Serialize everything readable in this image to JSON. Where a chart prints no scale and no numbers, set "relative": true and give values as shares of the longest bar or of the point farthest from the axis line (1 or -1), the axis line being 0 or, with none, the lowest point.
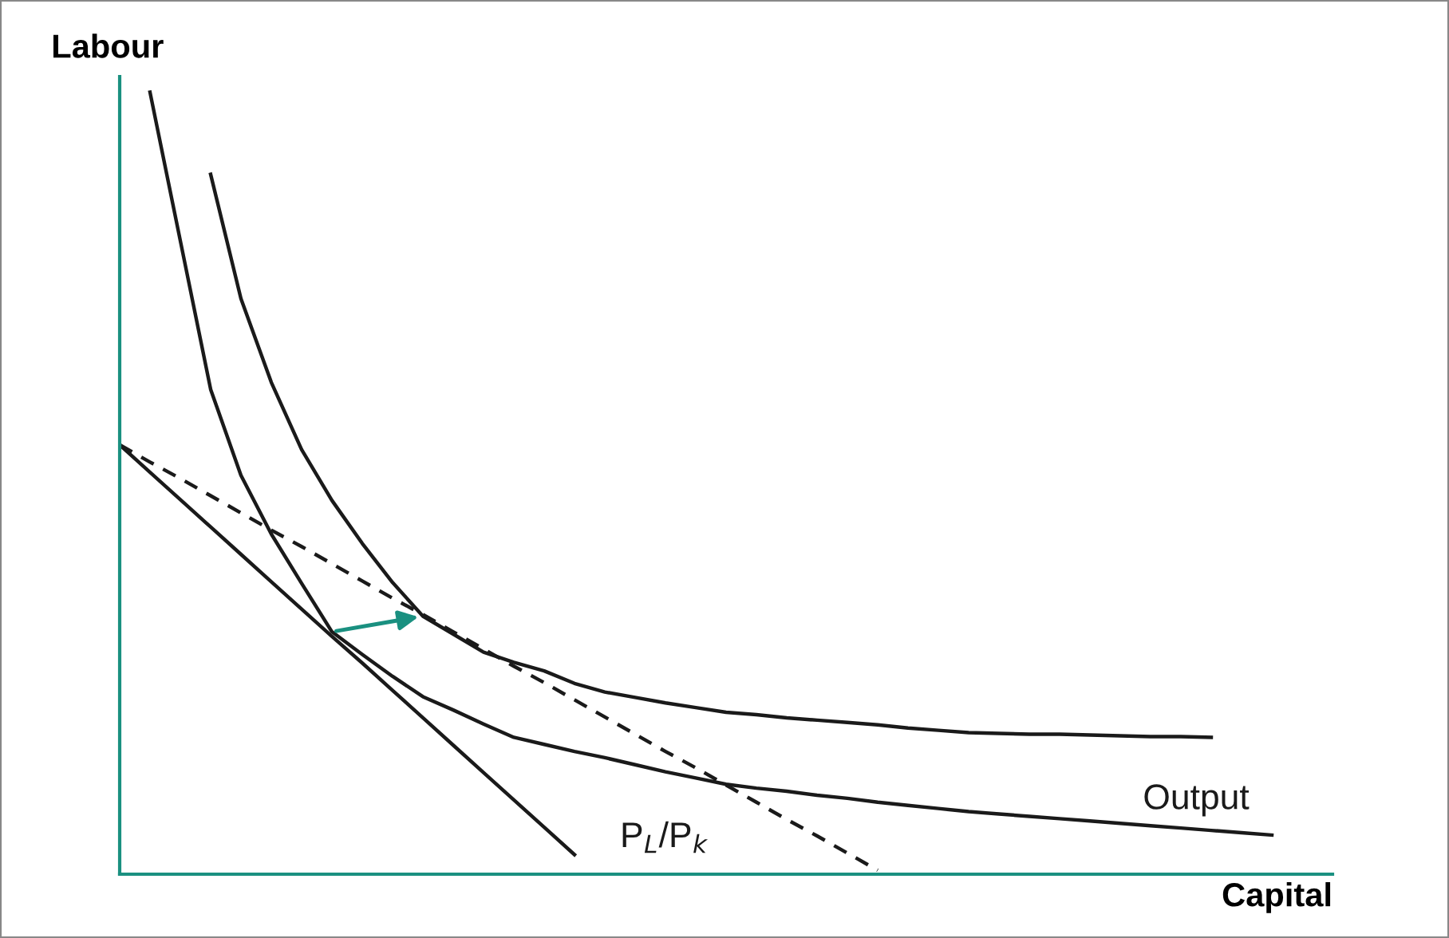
{
  "chart_data": {
    "type": "line",
    "relative": true,
    "xlabel": "Capital",
    "ylabel": "Labour",
    "legend": false,
    "marker": "none",
    "categories": [
      null,
      null,
      null,
      null,
      null,
      null,
      null,
      null,
      null,
      null,
      null,
      null,
      null,
      null,
      null,
      null,
      null,
      null,
      null,
      null,
      null,
      null,
      null,
      null,
      null,
      null,
      null,
      null,
      null,
      null,
      null,
      null,
      null,
      null,
      null,
      null,
      null,
      null,
      null,
      null
    ],
    "series": [
      {
        "color": "#1a1a1a",
        "values": [
          null,
          1.0,
          0.81,
          0.62,
          0.51,
          0.435,
          0.372,
          0.31,
          0.281,
          0.253,
          0.227,
          0.21,
          0.192,
          0.175,
          0.166,
          0.157,
          0.149,
          0.14,
          0.131,
          0.123,
          0.115,
          0.11,
          0.106,
          0.101,
          0.097,
          0.092,
          0.088,
          0.084,
          0.08,
          0.077,
          0.074,
          0.071,
          0.068,
          0.065,
          0.062,
          0.059,
          0.056,
          0.053,
          0.05,
          null
        ]
      },
      {
        "color": "#1a1a1a",
        "values": [
          null,
          null,
          null,
          0.895,
          0.736,
          0.629,
          0.543,
          0.478,
          0.423,
          0.373,
          0.33,
          0.307,
          0.284,
          0.271,
          0.26,
          0.244,
          0.233,
          0.226,
          0.219,
          0.213,
          0.207,
          0.204,
          0.2,
          0.197,
          0.194,
          0.191,
          0.187,
          0.184,
          0.181,
          0.18,
          0.179,
          0.179,
          0.178,
          0.177,
          0.176,
          0.176,
          0.175,
          null,
          null,
          null
        ]
      },
      {
        "color": "#1a1a1a",
        "values": [
          0.549,
          0.514,
          0.479,
          0.444,
          0.409,
          0.374,
          0.339,
          0.304,
          0.27,
          0.235,
          0.2,
          0.165,
          0.13,
          0.095,
          0.06,
          0.025,
          null,
          null,
          null,
          null,
          null,
          null,
          null,
          null,
          null,
          null,
          null,
          null,
          null,
          null,
          null,
          null,
          null,
          null,
          null,
          null,
          null,
          null,
          null,
          null
        ]
      },
      {
        "color": "#1a1a1a",
        "line_style": "dashed",
        "values": [
          0.549,
          0.527,
          0.506,
          0.484,
          0.462,
          0.44,
          0.419,
          0.397,
          0.375,
          0.353,
          0.332,
          0.31,
          0.288,
          0.266,
          0.245,
          0.223,
          0.201,
          0.179,
          0.157,
          0.136,
          0.114,
          0.092,
          0.07,
          0.049,
          0.027,
          0.005,
          null,
          null,
          null,
          null,
          null,
          null,
          null,
          null,
          null,
          null,
          null,
          null,
          null,
          null
        ]
      }
    ],
    "annotations": [
      "Output",
      "P$_{L}$/P$_{k}$"
    ]
  }
}
